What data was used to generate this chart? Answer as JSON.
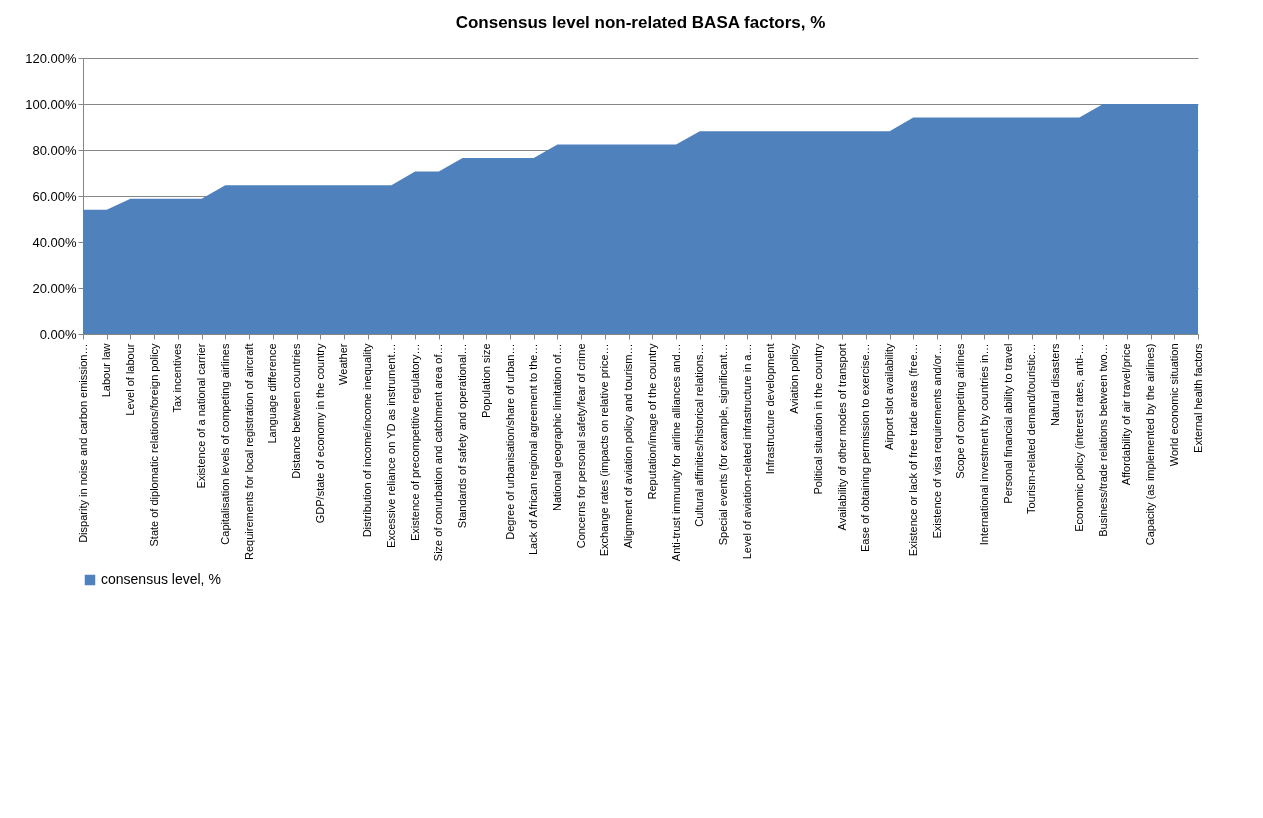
{
  "chart_data": {
    "type": "area",
    "title": "Consensus level non-related BASA factors, %",
    "categories": [
      "Disparity in noise and carbon emission…",
      "Labour law",
      "Level of labour",
      "State of diplomatic relations/foreign policy",
      "Tax incentives",
      "Existence of a national carrier",
      "Capitalisation levels of competing airlines",
      "Requirements for local registration of aircraft",
      "Language difference",
      "Distance between countries",
      "GDP/state of economy in the country",
      "Weather",
      "Distribution of income/income inequality",
      "Excessive reliance on YD as instrument…",
      "Existence of precompetitive regulatory…",
      "Size of conurbation and catchment area of…",
      "Standards of safety and operational…",
      "Population size",
      "Degree of urbanisation/share of urban…",
      "Lack of African regional agreement to the…",
      "National geographic limitation of…",
      "Concerns for personal safety/fear of crime",
      "Exchange rates (impacts on relative price…",
      "Alignment of aviation policy and tourism…",
      "Reputation/image of the country",
      "Anti-trust immunity for airline alliances and…",
      "Cultural affinities/historical relations…",
      "Special events (for example, significant…",
      "Level of aviation-related infrastructure in a…",
      "Infrastructure development",
      "Aviation policy",
      "Political situation in the country",
      "Availability of other modes of transport",
      "Ease of obtaining permission to exercise…",
      "Airport slot availability",
      "Existence or lack of free trade areas (free…",
      "Existence of visa requirements and/or…",
      "Scope of competing airlines",
      "International investment by countries in…",
      "Personal financial ability to travel",
      "Tourism-related demand/touristic…",
      "Natural disasters",
      "Economic policy (interest rates, anti-…",
      "Business/trade relations between two…",
      "Affordability of air travel/price",
      "Capacity (as implemented by the airlines)",
      "World economic situation",
      "External health factors"
    ],
    "series": [
      {
        "name": "consensus level, %",
        "color": "#4f81bd",
        "values": [
          54,
          54,
          58.8,
          58.8,
          58.8,
          58.8,
          64.7,
          64.7,
          64.7,
          64.7,
          64.7,
          64.7,
          64.7,
          64.7,
          70.6,
          70.6,
          76.5,
          76.5,
          76.5,
          76.5,
          82.4,
          82.4,
          82.4,
          82.4,
          82.4,
          82.4,
          88.2,
          88.2,
          88.2,
          88.2,
          88.2,
          88.2,
          88.2,
          88.2,
          88.2,
          94.1,
          94.1,
          94.1,
          94.1,
          94.1,
          94.1,
          94.1,
          94.1,
          100,
          100,
          100,
          100,
          100
        ]
      }
    ],
    "ylim": [
      0,
      120
    ],
    "yticks": [
      {
        "value": 0,
        "label": "0.00%"
      },
      {
        "value": 20,
        "label": "20.00%"
      },
      {
        "value": 40,
        "label": "40.00%"
      },
      {
        "value": 60,
        "label": "60.00%"
      },
      {
        "value": 80,
        "label": "80.00%"
      },
      {
        "value": 100,
        "label": "100.00%"
      },
      {
        "value": 120,
        "label": "120.00%"
      }
    ],
    "grid": "y",
    "legend": "bottom"
  }
}
